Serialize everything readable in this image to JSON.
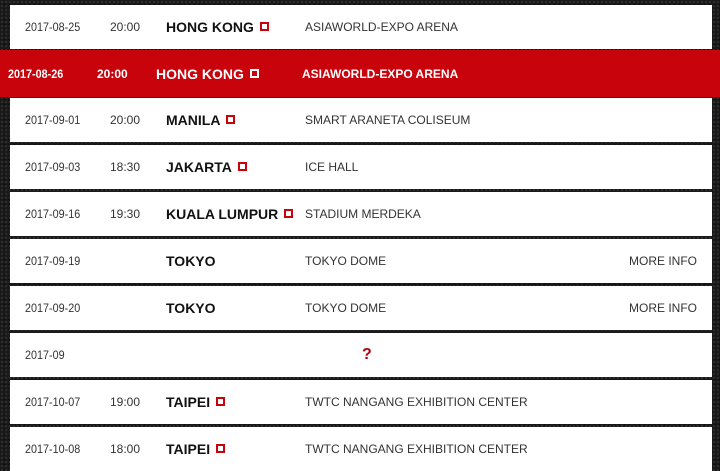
{
  "tour_dates": [
    {
      "date": "2017-08-25",
      "time": "20:00",
      "city": "HONG KONG",
      "flag": true,
      "venue": "ASIAWORLD-EXPO ARENA",
      "more": ""
    },
    {
      "date": "2017-08-26",
      "time": "20:00",
      "city": "HONG KONG",
      "flag": true,
      "venue": "ASIAWORLD-EXPO ARENA",
      "more": "",
      "highlighted": true
    },
    {
      "date": "2017-09-01",
      "time": "20:00",
      "city": "MANILA",
      "flag": true,
      "venue": "SMART ARANETA COLISEUM",
      "more": ""
    },
    {
      "date": "2017-09-03",
      "time": "18:30",
      "city": "JAKARTA",
      "flag": true,
      "venue": "ICE HALL",
      "more": ""
    },
    {
      "date": "2017-09-16",
      "time": "19:30",
      "city": "KUALA LUMPUR",
      "flag": true,
      "venue": "STADIUM MERDEKA",
      "more": ""
    },
    {
      "date": "2017-09-19",
      "time": "",
      "city": "TOKYO",
      "flag": false,
      "venue": "TOKYO DOME",
      "more": "MORE INFO"
    },
    {
      "date": "2017-09-20",
      "time": "",
      "city": "TOKYO",
      "flag": false,
      "venue": "TOKYO DOME",
      "more": "MORE INFO"
    },
    {
      "date": "2017-09",
      "time": "",
      "city": "",
      "flag": false,
      "venue": "",
      "more": "",
      "unknown": "?"
    },
    {
      "date": "2017-10-07",
      "time": "19:00",
      "city": "TAIPEI",
      "flag": true,
      "venue": "TWTC NANGANG EXHIBITION CENTER",
      "more": ""
    },
    {
      "date": "2017-10-08",
      "time": "18:00",
      "city": "TAIPEI",
      "flag": true,
      "venue": "TWTC NANGANG EXHIBITION CENTER",
      "more": ""
    }
  ],
  "colors": {
    "highlight": "#c8030c",
    "background": "#1a1a1a"
  }
}
